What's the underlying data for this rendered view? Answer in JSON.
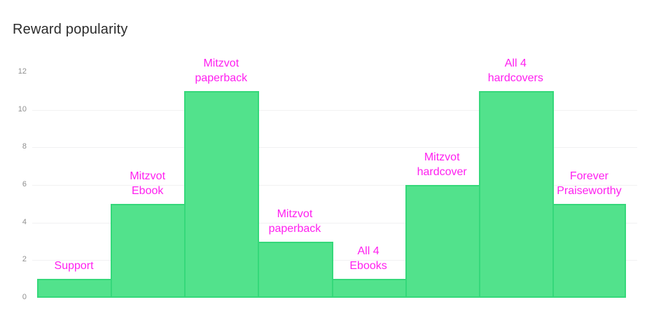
{
  "title": "Reward popularity",
  "chart_data": {
    "type": "bar",
    "title": "Reward popularity",
    "categories": [
      "Support",
      "Mitzvot Ebook",
      "Mitzvot paperback",
      "Mitzvot paperback",
      "All 4 Ebooks",
      "Mitzvot hardcover",
      "All 4 hardcovers",
      "Forever Praiseworthy"
    ],
    "values": [
      1,
      5,
      11,
      3,
      1,
      6,
      11,
      5
    ],
    "xlabel": "",
    "ylabel": "",
    "ylim": [
      0,
      12
    ],
    "yticks": [
      0,
      2,
      4,
      6,
      8,
      10,
      12
    ],
    "gridline_ticks": [
      2,
      4,
      6,
      8,
      10
    ],
    "grid": "horizontal",
    "legend": "none",
    "bar_labels_position": "above-bars",
    "colors": {
      "bar_fill": "#52e28c",
      "bar_border": "#35d87a",
      "bar_label_text": "#ff1ff0",
      "gridline": "#f1f1f2",
      "tick_text": "#8f8f8f",
      "title_text": "#2b2b2b",
      "background": "#ffffff"
    }
  }
}
